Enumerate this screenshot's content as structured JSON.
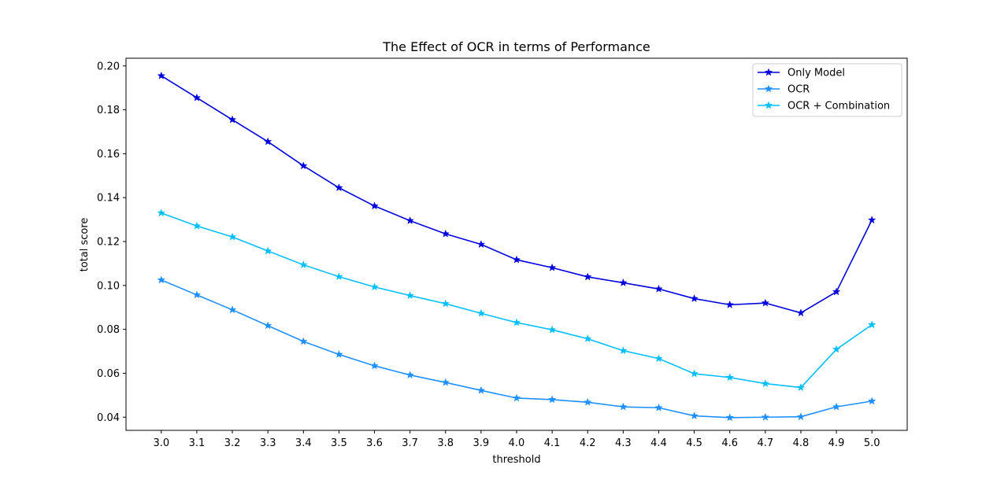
{
  "chart_data": {
    "type": "line",
    "title": "The Effect of OCR in terms of Performance",
    "xlabel": "threshold",
    "ylabel": "total score",
    "x": [
      "3.0",
      "3.1",
      "3.2",
      "3.3",
      "3.4",
      "3.5",
      "3.6",
      "3.7",
      "3.8",
      "3.9",
      "4.0",
      "4.1",
      "4.2",
      "4.3",
      "4.4",
      "4.5",
      "4.6",
      "4.7",
      "4.8",
      "4.9",
      "5.0"
    ],
    "yticks": [
      "0.04",
      "0.06",
      "0.08",
      "0.10",
      "0.12",
      "0.14",
      "0.16",
      "0.18",
      "0.20"
    ],
    "ylim": [
      0.034,
      0.2035
    ],
    "grid": false,
    "legend_position": "top-right",
    "series": [
      {
        "name": "Only Model",
        "color": "#0000dd",
        "marker": "star",
        "values": [
          0.1955,
          0.1855,
          0.1755,
          0.1655,
          0.1545,
          0.1445,
          0.1362,
          0.1295,
          0.1235,
          0.1187,
          0.1117,
          0.1081,
          0.1039,
          0.1012,
          0.0984,
          0.094,
          0.0912,
          0.092,
          0.0875,
          0.0971,
          0.1298
        ]
      },
      {
        "name": "OCR",
        "color": "#1e90ff",
        "marker": "star",
        "values": [
          0.1025,
          0.0957,
          0.0889,
          0.0817,
          0.0745,
          0.0686,
          0.0634,
          0.0592,
          0.0558,
          0.0522,
          0.0487,
          0.048,
          0.0468,
          0.0447,
          0.0443,
          0.0406,
          0.0398,
          0.04,
          0.0402,
          0.0447,
          0.0473
        ]
      },
      {
        "name": "OCR + Combination",
        "color": "#00bfff",
        "marker": "star",
        "values": [
          0.133,
          0.1271,
          0.1221,
          0.1157,
          0.1094,
          0.104,
          0.0993,
          0.0954,
          0.0917,
          0.0873,
          0.0831,
          0.0798,
          0.0757,
          0.0703,
          0.0667,
          0.0598,
          0.0581,
          0.0553,
          0.0535,
          0.0709,
          0.0821
        ]
      }
    ]
  }
}
